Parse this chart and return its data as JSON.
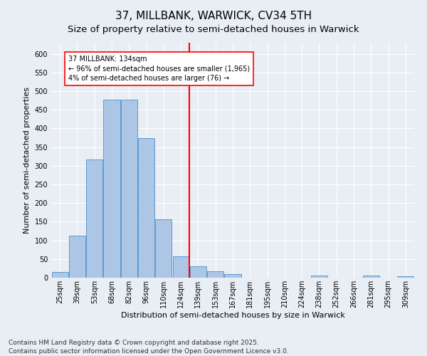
{
  "title": "37, MILLBANK, WARWICK, CV34 5TH",
  "subtitle": "Size of property relative to semi-detached houses in Warwick",
  "xlabel": "Distribution of semi-detached houses by size in Warwick",
  "ylabel": "Number of semi-detached properties",
  "categories": [
    "25sqm",
    "39sqm",
    "53sqm",
    "68sqm",
    "82sqm",
    "96sqm",
    "110sqm",
    "124sqm",
    "139sqm",
    "153sqm",
    "167sqm",
    "181sqm",
    "195sqm",
    "210sqm",
    "224sqm",
    "238sqm",
    "252sqm",
    "266sqm",
    "281sqm",
    "295sqm",
    "309sqm"
  ],
  "values": [
    15,
    113,
    316,
    478,
    477,
    374,
    156,
    57,
    30,
    17,
    10,
    0,
    0,
    0,
    0,
    5,
    0,
    0,
    5,
    0,
    3
  ],
  "bar_color": "#adc6e5",
  "bar_edge_color": "#5b9bd5",
  "vline_index": 7.5,
  "vline_label": "37 MILLBANK: 134sqm",
  "annotation_line1": "← 96% of semi-detached houses are smaller (1,965)",
  "annotation_line2": "4% of semi-detached houses are larger (76) →",
  "ylim": [
    0,
    630
  ],
  "yticks": [
    0,
    50,
    100,
    150,
    200,
    250,
    300,
    350,
    400,
    450,
    500,
    550,
    600
  ],
  "footer": "Contains HM Land Registry data © Crown copyright and database right 2025.\nContains public sector information licensed under the Open Government Licence v3.0.",
  "bg_color": "#e8eef4",
  "grid_color": "#ffffff",
  "title_fontsize": 11,
  "subtitle_fontsize": 9.5,
  "axis_label_fontsize": 8,
  "tick_fontsize": 7,
  "footer_fontsize": 6.5
}
